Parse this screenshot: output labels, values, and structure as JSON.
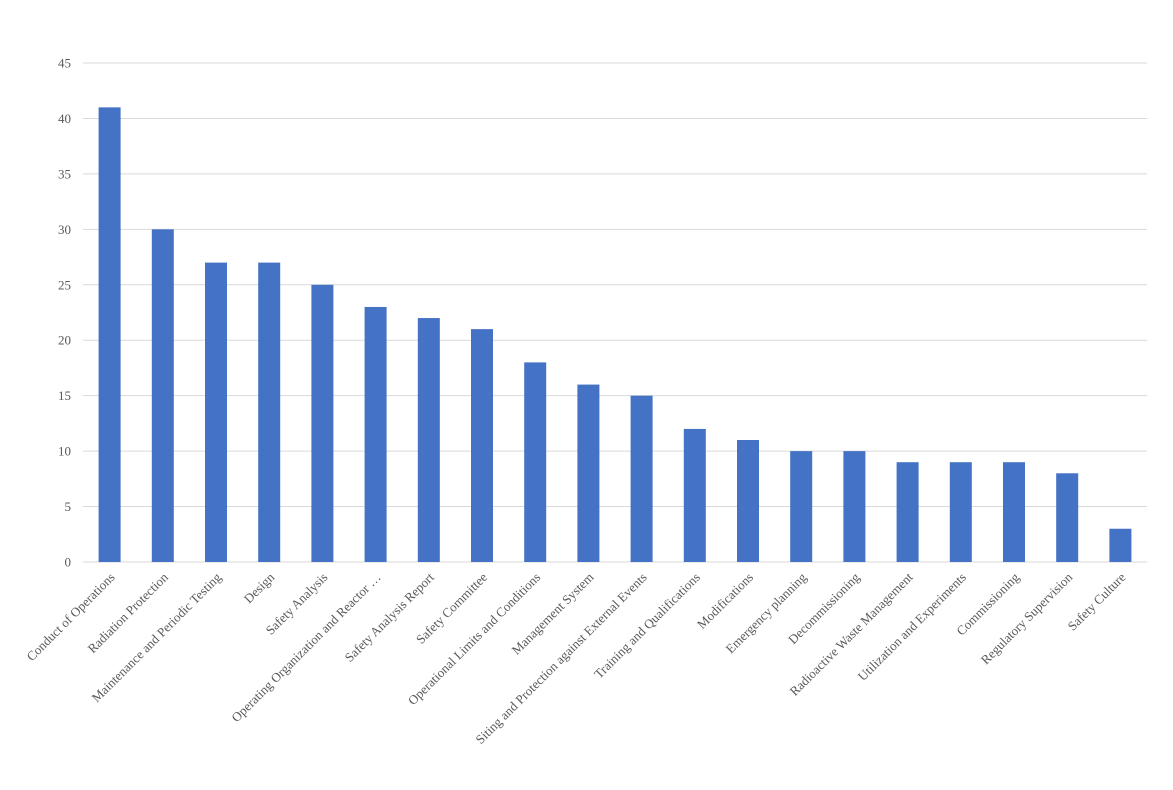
{
  "chart_data": {
    "type": "bar",
    "title": "",
    "xlabel": "",
    "ylabel": "",
    "ylim": [
      0,
      45
    ],
    "yticks": [
      0,
      5,
      10,
      15,
      20,
      25,
      30,
      35,
      40,
      45
    ],
    "grid": true,
    "legend": "none",
    "bar_color": "#4472C4",
    "categories": [
      "Conduct of Operations",
      "Radiation Protection",
      "Maintenance and Periodic Testing",
      "Design",
      "Safety Analysis",
      "Operating Organization and Reactor …",
      "Safety Analysis Report",
      "Safety Committee",
      "Operational Limits and Conditions",
      "Management System",
      "Siting and Protection against External Events",
      "Training and Qualifications",
      "Modifications",
      "Emergency planning",
      "Decommissioning",
      "Radioactive Waste Management",
      "Utilization and Experiments",
      "Commissioning",
      "Regulatory Supervision",
      "Safety Culture"
    ],
    "values": [
      41,
      30,
      27,
      27,
      25,
      23,
      22,
      21,
      18,
      16,
      15,
      12,
      11,
      10,
      10,
      9,
      9,
      9,
      8,
      3
    ]
  }
}
